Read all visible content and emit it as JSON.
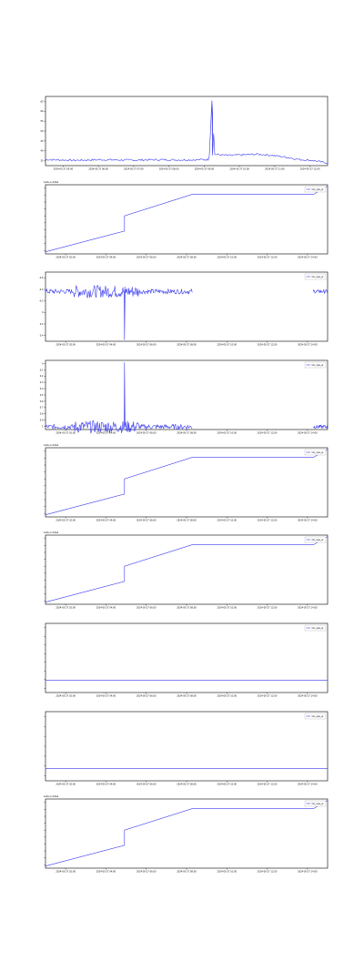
{
  "colors": {
    "line": "#3a3af0",
    "frame": "#000000",
    "grid": "#cccccc",
    "bg": "#ffffff"
  },
  "chart_data": [
    {
      "type": "line",
      "title": "",
      "legend": null,
      "offset_label": "",
      "xticks": [
        "2024-05-27 05:00",
        "2024-05-27 06:00",
        "2024-05-27 07:00",
        "2024-05-27 08:00",
        "2024-05-27 09:00",
        "2024-05-27 10:00",
        "2024-05-27 11:00",
        "2024-05-27 12:00"
      ],
      "yticks": [
        "35",
        "40",
        "45",
        "50",
        "55",
        "60",
        "65"
      ],
      "series": [
        {
          "shape": "noisy-spike",
          "points": [
            [
              0,
              36.0
            ],
            [
              0.1,
              35.6
            ],
            [
              0.2,
              35.9
            ],
            [
              0.3,
              35.7
            ],
            [
              0.4,
              35.9
            ],
            [
              0.5,
              35.8
            ],
            [
              0.58,
              36.0
            ],
            [
              0.59,
              65.0
            ],
            [
              0.6,
              38.5
            ],
            [
              0.65,
              38.0
            ],
            [
              0.7,
              38.3
            ],
            [
              0.75,
              38.6
            ],
            [
              0.8,
              38.1
            ],
            [
              0.85,
              37.2
            ],
            [
              0.9,
              36.0
            ],
            [
              0.95,
              35.5
            ],
            [
              1.0,
              34.2
            ]
          ]
        }
      ]
    },
    {
      "type": "line",
      "title": "",
      "legend": "CA_ops_w",
      "offset_label": "1e9+1.23e4",
      "xticks": [
        "2024-05-27 02:00",
        "2024-05-27 04:00",
        "2024-05-27 06:00",
        "2024-05-27 08:00",
        "2024-05-27 10:00",
        "2024-05-27 12:00",
        "2024-05-27 14:00"
      ],
      "yticks": [
        "",
        "",
        "",
        "",
        "",
        "",
        "",
        "",
        "",
        ""
      ],
      "series": [
        {
          "shape": "step-ramp",
          "points": [
            [
              0,
              0.03
            ],
            [
              0.28,
              0.33
            ],
            [
              0.28,
              0.55
            ],
            [
              0.52,
              0.86
            ],
            [
              0.95,
              0.86
            ],
            [
              1.0,
              0.98
            ]
          ]
        }
      ]
    },
    {
      "type": "line",
      "title": "",
      "legend": "CA_ops_w",
      "offset_label": "",
      "xticks": [
        "2024-05-27 02:00",
        "2024-05-27 04:00",
        "2024-05-27 06:00",
        "2024-05-27 08:00",
        "2024-05-27 10:00",
        "2024-05-27 12:00",
        "2024-05-27 14:00"
      ],
      "yticks": [
        "0.4",
        "0.2",
        "0",
        "-0.2",
        "-0.4",
        "-0.6"
      ],
      "series": [
        {
          "shape": "noise-dip",
          "points": [
            [
              0,
              0.0
            ],
            [
              0.28,
              -0.6
            ],
            [
              0.52,
              0.0
            ],
            [
              1.0,
              0.0
            ]
          ]
        }
      ]
    },
    {
      "type": "line",
      "title": "",
      "legend": "CA_ops_w",
      "offset_label": "",
      "xticks": [
        "2024-05-27 02:00",
        "2024-05-27 04:00",
        "2024-05-27 06:00",
        "2024-05-27 08:00",
        "2024-05-27 10:00",
        "2024-05-27 12:00",
        "2024-05-27 14:00"
      ],
      "yticks": [
        "1",
        "0.9",
        "0.8",
        "0.7",
        "0.6",
        "0.5",
        "0.4",
        "0.3",
        "0.2",
        "0.1",
        "0"
      ],
      "series": [
        {
          "shape": "noise-spike",
          "points": [
            [
              0,
              0.02
            ],
            [
              0.28,
              0.93
            ],
            [
              0.52,
              0.02
            ],
            [
              1.0,
              0.02
            ]
          ]
        }
      ]
    },
    {
      "type": "line",
      "title": "",
      "legend": "CA_ops_w",
      "offset_label": "1e9+1.23e4",
      "xticks": [
        "2024-05-27 02:00",
        "2024-05-27 04:00",
        "2024-05-27 06:00",
        "2024-05-27 08:00",
        "2024-05-27 10:00",
        "2024-05-27 12:00",
        "2024-05-27 14:00"
      ],
      "yticks": [
        "",
        "",
        "",
        "",
        "",
        "",
        "",
        "",
        "",
        ""
      ],
      "series": [
        {
          "shape": "step-ramp",
          "points": [
            [
              0,
              0.03
            ],
            [
              0.28,
              0.33
            ],
            [
              0.28,
              0.55
            ],
            [
              0.52,
              0.86
            ],
            [
              0.95,
              0.86
            ],
            [
              1.0,
              0.98
            ]
          ]
        }
      ]
    },
    {
      "type": "line",
      "title": "",
      "legend": "CA_ops_w",
      "offset_label": "1e9+1.23e4",
      "xticks": [
        "2024-05-27 02:00",
        "2024-05-27 04:00",
        "2024-05-27 06:00",
        "2024-05-27 08:00",
        "2024-05-27 10:00",
        "2024-05-27 12:00",
        "2024-05-27 14:00"
      ],
      "yticks": [
        "",
        "",
        "",
        "",
        "",
        "",
        "",
        "",
        "",
        ""
      ],
      "series": [
        {
          "shape": "step-ramp",
          "points": [
            [
              0,
              0.03
            ],
            [
              0.28,
              0.33
            ],
            [
              0.28,
              0.55
            ],
            [
              0.52,
              0.86
            ],
            [
              0.95,
              0.86
            ],
            [
              1.0,
              0.98
            ]
          ]
        }
      ]
    },
    {
      "type": "line",
      "title": "",
      "legend": "CA_ops_w",
      "offset_label": "",
      "xticks": [
        "2024-05-27 02:00",
        "2024-05-27 04:00",
        "2024-05-27 06:00",
        "2024-05-27 08:00",
        "2024-05-27 10:00",
        "2024-05-27 12:00",
        "2024-05-27 14:00"
      ],
      "yticks": [
        "",
        "",
        "",
        "",
        "",
        "",
        "",
        ""
      ],
      "series": [
        {
          "shape": "flat",
          "points": [
            [
              0,
              0.18
            ],
            [
              1.0,
              0.18
            ]
          ]
        }
      ]
    },
    {
      "type": "line",
      "title": "",
      "legend": "CA_ops_w",
      "offset_label": "",
      "xticks": [
        "2024-05-27 02:00",
        "2024-05-27 04:00",
        "2024-05-27 06:00",
        "2024-05-27 08:00",
        "2024-05-27 10:00",
        "2024-05-27 12:00",
        "2024-05-27 14:00"
      ],
      "yticks": [
        "",
        "",
        "",
        "",
        "",
        "",
        ""
      ],
      "series": [
        {
          "shape": "flat",
          "points": [
            [
              0,
              0.18
            ],
            [
              1.0,
              0.18
            ]
          ]
        }
      ]
    },
    {
      "type": "line",
      "title": "",
      "legend": "CA_ops_w",
      "offset_label": "1e9+1.23e4",
      "xticks": [
        "2024-05-27 02:00",
        "2024-05-27 04:00",
        "2024-05-27 06:00",
        "2024-05-27 08:00",
        "2024-05-27 10:00",
        "2024-05-27 12:00",
        "2024-05-27 14:00"
      ],
      "yticks": [
        "",
        "",
        "",
        "",
        "",
        "",
        "",
        "",
        "",
        ""
      ],
      "series": [
        {
          "shape": "step-ramp",
          "points": [
            [
              0,
              0.03
            ],
            [
              0.28,
              0.33
            ],
            [
              0.28,
              0.55
            ],
            [
              0.52,
              0.86
            ],
            [
              0.95,
              0.86
            ],
            [
              1.0,
              0.98
            ]
          ]
        }
      ]
    }
  ]
}
